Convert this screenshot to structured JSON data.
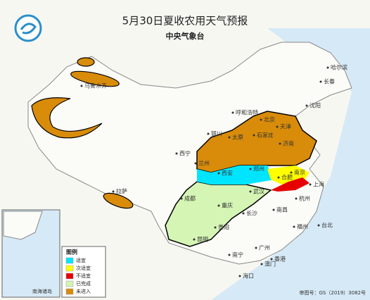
{
  "header": {
    "title": "5月30日夏收农用天气预报",
    "subtitle": "中央气象台"
  },
  "legend": {
    "title": "图例",
    "items": [
      {
        "label": "适宜",
        "color": "#00e5ff"
      },
      {
        "label": "次适宜",
        "color": "#ffff00"
      },
      {
        "label": "不适宜",
        "color": "#e60000"
      },
      {
        "label": "已完成",
        "color": "#d4f5b4"
      },
      {
        "label": "未进入",
        "color": "#d98c0a"
      }
    ]
  },
  "cities": [
    "乌鲁木齐",
    "哈尔滨",
    "长春",
    "沈阳",
    "呼和浩特",
    "北京",
    "天津",
    "石家庄",
    "银川",
    "太原",
    "济南",
    "西宁",
    "兰州",
    "郑州",
    "西安",
    "合肥",
    "南京",
    "上海",
    "拉萨",
    "成都",
    "武汉",
    "杭州",
    "重庆",
    "长沙",
    "南昌",
    "福州",
    "台北",
    "贵阳",
    "昆明",
    "南宁",
    "广州",
    "香港",
    "澳门",
    "海口"
  ],
  "inset_label": "南海诸岛",
  "approval": "审图号：GS（2019）3082号"
}
